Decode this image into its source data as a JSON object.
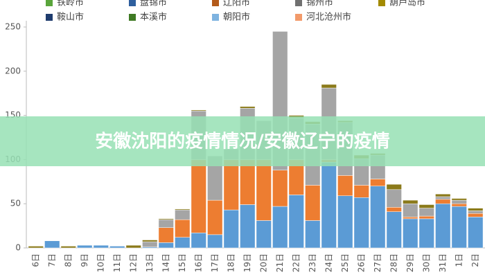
{
  "chart_data": {
    "type": "stacked_bar",
    "legend": [
      {
        "name": "铁岭市",
        "color": "#5aa53c"
      },
      {
        "name": "盘锦市",
        "color": "#2e5f9e"
      },
      {
        "name": "辽阳市",
        "color": "#b35a1a"
      },
      {
        "name": "锦州市",
        "color": "#707070"
      },
      {
        "name": "葫芦岛市",
        "color": "#a38a00"
      },
      {
        "name": "鞍山市",
        "color": "#1f3c6e"
      },
      {
        "name": "本溪市",
        "color": "#3f7a24"
      },
      {
        "name": "朝阳市",
        "color": "#7eb3e0"
      },
      {
        "name": "河北沧州市",
        "color": "#f29a6a"
      }
    ],
    "categories": [
      "6日",
      "7日",
      "8日",
      "9日",
      "10日",
      "11日",
      "12日",
      "13日",
      "14日",
      "15日",
      "16日",
      "17日",
      "18日",
      "19日",
      "20日",
      "21日",
      "22日",
      "23日",
      "24日",
      "25日",
      "26日",
      "27日",
      "28日",
      "29日",
      "30日",
      "31日",
      "1日",
      "2日"
    ],
    "series": [
      {
        "color": "#5b9bd5",
        "values": [
          0,
          8,
          0,
          3,
          3,
          2,
          0,
          1,
          6,
          12,
          17,
          15,
          43,
          49,
          31,
          47,
          60,
          31,
          97,
          59,
          57,
          70,
          41,
          33,
          33,
          50,
          47,
          35
        ]
      },
      {
        "color": "#ed7d31",
        "values": [
          0,
          0,
          0,
          0,
          0,
          0,
          0,
          0,
          17,
          20,
          83,
          39,
          57,
          51,
          69,
          41,
          40,
          40,
          3,
          23,
          14,
          8,
          5,
          2,
          3,
          5,
          3,
          4
        ]
      },
      {
        "color": "#a5a5a5",
        "values": [
          0,
          0,
          0,
          0,
          0,
          0,
          0,
          6,
          9,
          11,
          55,
          50,
          12,
          58,
          44,
          157,
          47,
          69,
          81,
          60,
          30,
          27,
          20,
          15,
          9,
          3,
          4,
          3
        ]
      },
      {
        "color": "#8b7a1a",
        "values": [
          2,
          0,
          2,
          0,
          0,
          0,
          3,
          2,
          1,
          1,
          1,
          0,
          0,
          2,
          0,
          0,
          3,
          3,
          4,
          2,
          4,
          2,
          6,
          4,
          4,
          3,
          2,
          3
        ]
      }
    ],
    "ylim": [
      0,
      250
    ],
    "yticks": [
      0,
      50,
      100,
      150,
      200,
      250
    ],
    "overlay_text": "安徽沈阳的疫情情况/安徽辽宁的疫情"
  }
}
